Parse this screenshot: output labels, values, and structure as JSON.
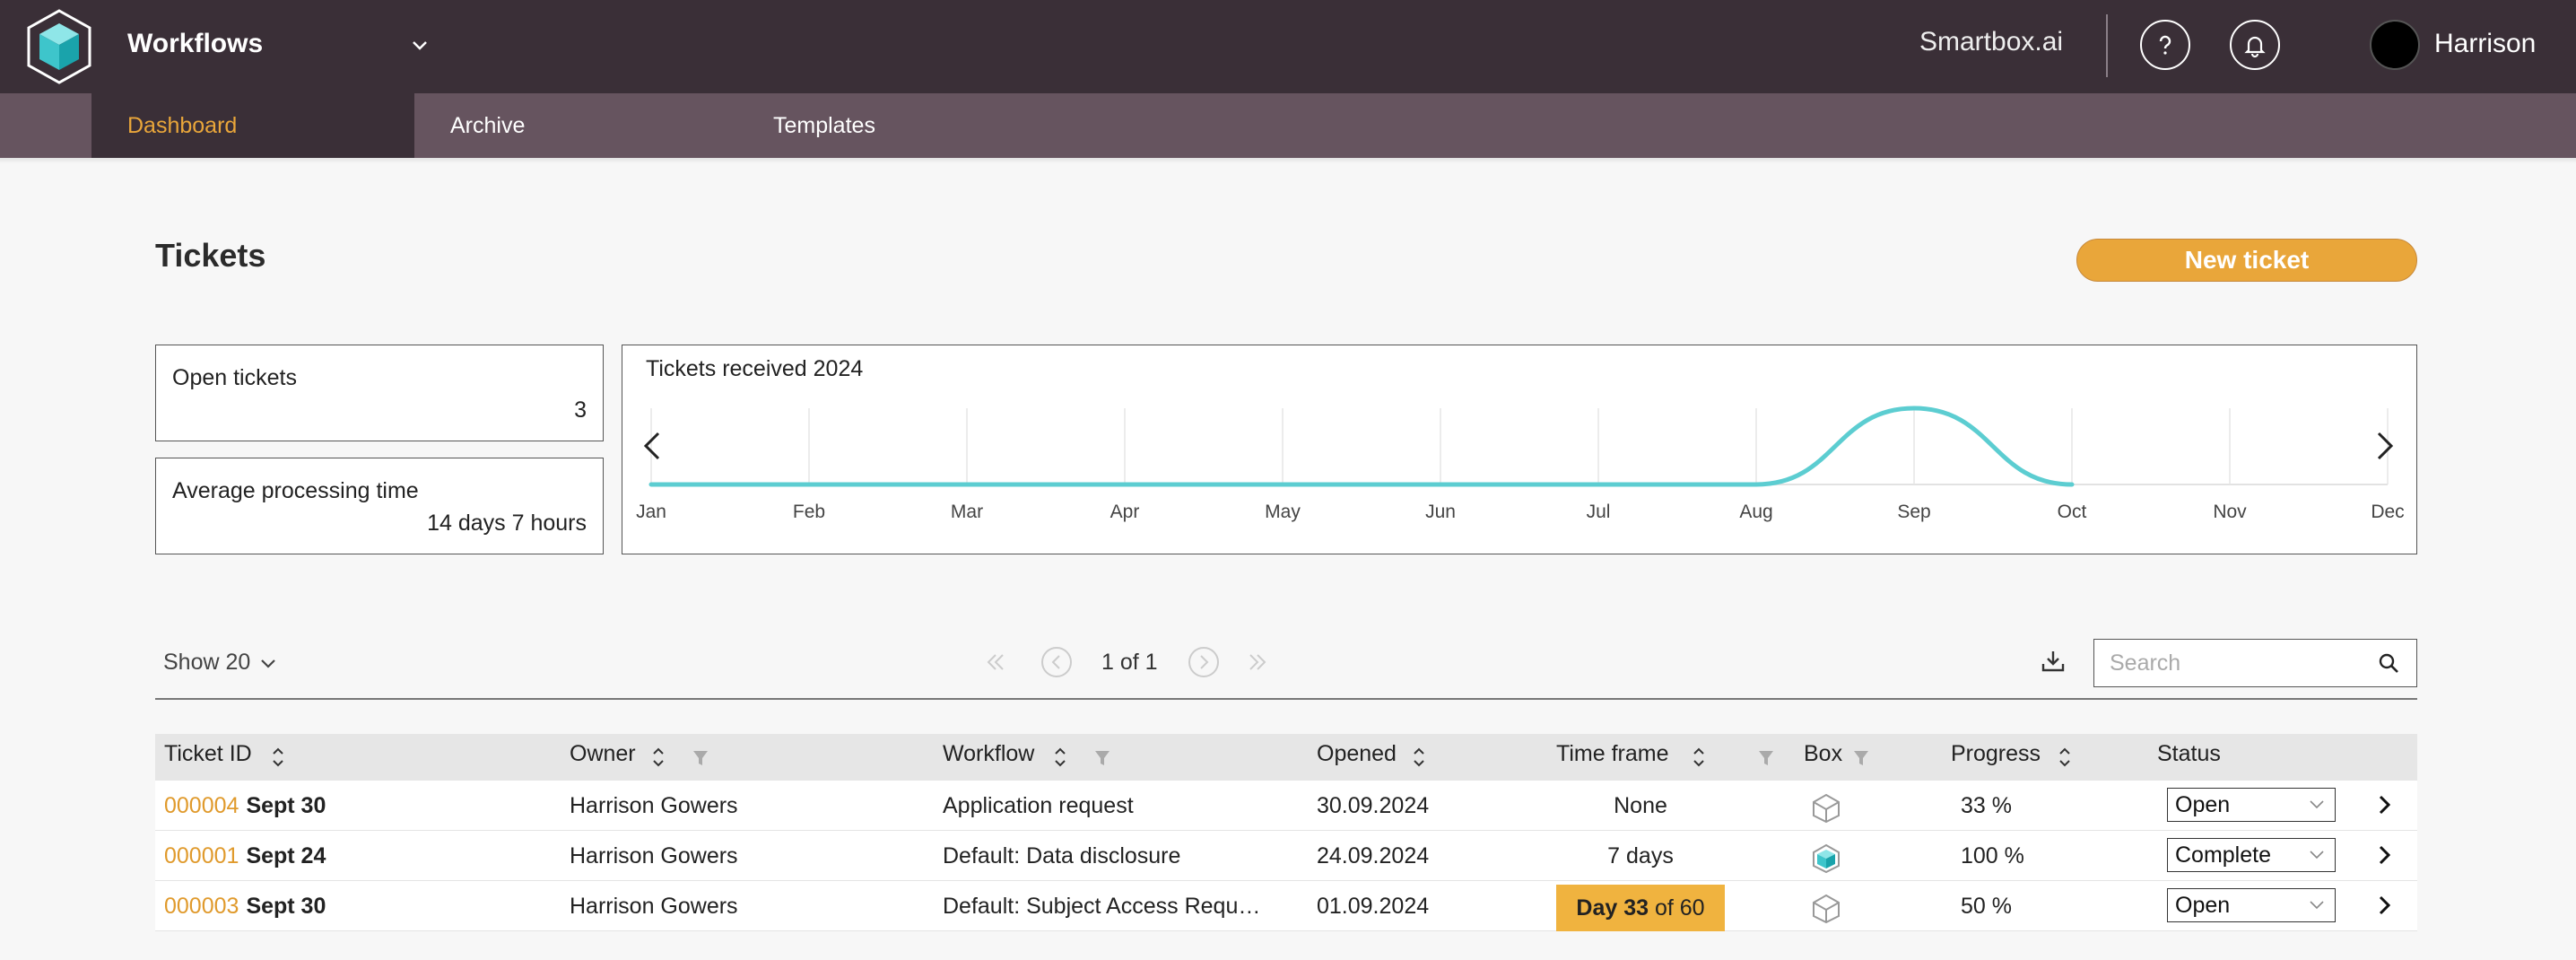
{
  "header": {
    "app_name": "Workflows",
    "brand": "Smartbox.ai",
    "user_name": "Harrison",
    "icons": {
      "logo": "cube-logo-icon",
      "app_menu": "chevron-down-icon",
      "help": "question-icon",
      "notifications": "bell-icon",
      "avatar": "avatar"
    }
  },
  "nav": {
    "tabs": [
      {
        "label": "Dashboard",
        "active": true
      },
      {
        "label": "Archive",
        "active": false
      },
      {
        "label": "Templates",
        "active": false
      }
    ]
  },
  "main": {
    "title": "Tickets",
    "new_ticket_label": "New ticket"
  },
  "stats": {
    "open_label": "Open tickets",
    "open_value": "3",
    "avg_label": "Average processing time",
    "avg_value": "14 days 7 hours"
  },
  "chart_data": {
    "type": "line",
    "title": "Tickets received 2024",
    "x": [
      "Jan",
      "Feb",
      "Mar",
      "Apr",
      "May",
      "Jun",
      "Jul",
      "Aug",
      "Sep",
      "Oct",
      "Nov",
      "Dec"
    ],
    "series": [
      {
        "values": [
          0,
          0,
          0,
          0,
          0,
          0,
          0,
          0,
          2,
          0,
          null,
          null
        ]
      }
    ],
    "xlabel": "",
    "ylabel": "",
    "ylim": [
      0,
      2
    ],
    "grid": "vertical",
    "color": "#5ccdd1"
  },
  "toolbar": {
    "show_label": "Show 20",
    "pager_text": "1 of 1",
    "search_placeholder": "Search"
  },
  "table": {
    "columns": [
      "Ticket ID",
      "Owner",
      "Workflow",
      "Opened",
      "Time frame",
      "Box",
      "Progress",
      "Status"
    ],
    "rows": [
      {
        "id": "000004",
        "date": "Sept 30",
        "owner": "Harrison Gowers",
        "workflow": "Application request",
        "opened": "30.09.2024",
        "timeframe": "None",
        "box": "outline",
        "progress": "33 %",
        "status": "Open"
      },
      {
        "id": "000001",
        "date": "Sept 24",
        "owner": "Harrison Gowers",
        "workflow": "Default: Data disclosure",
        "opened": "24.09.2024",
        "timeframe": "7 days",
        "box": "filled",
        "progress": "100 %",
        "status": "Complete"
      },
      {
        "id": "000003",
        "date": "Sept 30",
        "owner": "Harrison Gowers",
        "workflow": "Default: Subject Access Requ…",
        "opened": "01.09.2024",
        "timeframe_day": "Day 33",
        "timeframe_of": "of 60",
        "box": "outline",
        "progress": "50 %",
        "status": "Open"
      }
    ]
  },
  "colors": {
    "accent": "#e9a63a",
    "topbar": "#3a2f37",
    "navbar": "#66545f",
    "chart_line": "#5ccdd1"
  }
}
